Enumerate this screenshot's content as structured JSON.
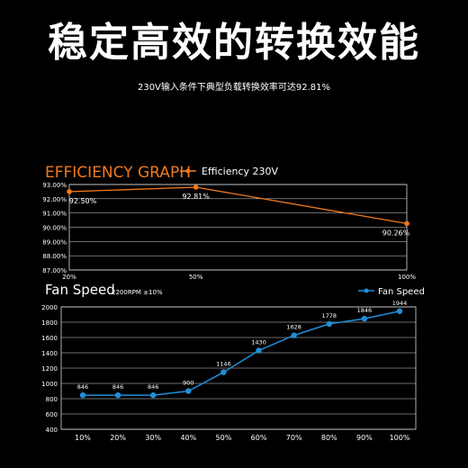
{
  "headline": "稳定高效的转换效能",
  "subline": "230V输入条件下典型负载转换效率可达92.81%",
  "colors": {
    "background": "#000000",
    "efficiency": "#f07a1e",
    "fan": "#1f8fd8",
    "grid": "#d9d9d9",
    "plot_bg": "#000000",
    "text": "#ffffff"
  },
  "chart_data": [
    {
      "type": "line",
      "title": "EFFICIENCY GRAPH",
      "legend": [
        "Efficiency 230V"
      ],
      "legend_position": "top",
      "x_categories": [
        "20%",
        "50%",
        "100%"
      ],
      "x_positions": [
        20,
        50,
        100
      ],
      "xlim": [
        20,
        100
      ],
      "y_ticks": [
        "93.00%",
        "92.00%",
        "91.00%",
        "90.00%",
        "89.00%",
        "88.00%",
        "87.00%"
      ],
      "ylim": [
        87,
        93
      ],
      "grid": true,
      "series": [
        {
          "name": "Efficiency 230V",
          "values": [
            92.5,
            92.81,
            90.26
          ],
          "labels": [
            "92.50%",
            "92.81%",
            "90.26%"
          ]
        }
      ]
    },
    {
      "type": "line",
      "title": "Fan Speed",
      "subtitle": "2200RPM ±10%",
      "legend": [
        "Fan Speed"
      ],
      "legend_position": "top-right",
      "x_categories": [
        "10%",
        "20%",
        "30%",
        "40%",
        "50%",
        "60%",
        "70%",
        "80%",
        "90%",
        "100%"
      ],
      "y_ticks": [
        "2000",
        "1800",
        "1600",
        "1400",
        "1200",
        "1000",
        "800",
        "600",
        "400"
      ],
      "ylim": [
        400,
        2000
      ],
      "grid": true,
      "series": [
        {
          "name": "Fan Speed",
          "values": [
            846,
            846,
            846,
            900,
            1146,
            1430,
            1628,
            1778,
            1846,
            1944
          ],
          "labels": [
            "846",
            "846",
            "846",
            "900",
            "1146",
            "1430",
            "1628",
            "1778",
            "1846",
            "1944"
          ]
        }
      ]
    }
  ]
}
